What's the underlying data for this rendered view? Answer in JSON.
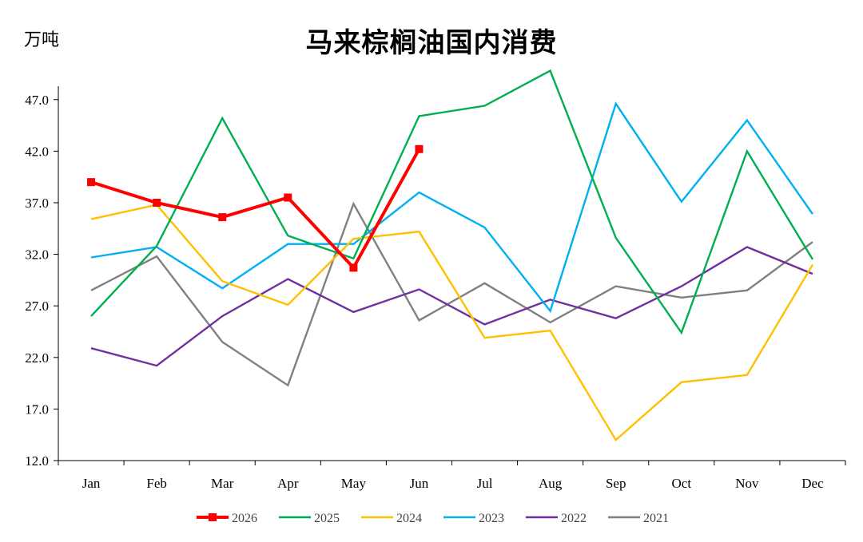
{
  "chart_data": {
    "type": "line",
    "title": "马来棕榈油国内消费",
    "unit": "万吨",
    "categories": [
      "Jan",
      "Feb",
      "Mar",
      "Apr",
      "May",
      "Jun",
      "Jul",
      "Aug",
      "Sep",
      "Oct",
      "Nov",
      "Dec"
    ],
    "ylim": [
      12.0,
      50.0
    ],
    "yticks": [
      "12.0",
      "17.0",
      "22.0",
      "27.0",
      "32.0",
      "37.0",
      "42.0",
      "47.0"
    ],
    "grid": false,
    "legend_position": "bottom",
    "series": [
      {
        "name": "2026",
        "color": "#ff0000",
        "markers": true,
        "bold": true,
        "values": [
          39.0,
          37.0,
          35.6,
          37.5,
          30.7,
          42.2,
          null,
          null,
          null,
          null,
          null,
          null
        ]
      },
      {
        "name": "2025",
        "color": "#00b050",
        "values": [
          26.0,
          32.8,
          45.2,
          33.8,
          31.6,
          45.4,
          46.4,
          49.8,
          33.6,
          24.4,
          42.0,
          31.5
        ]
      },
      {
        "name": "2024",
        "color": "#ffc000",
        "values": [
          35.4,
          36.8,
          29.4,
          27.1,
          33.5,
          34.2,
          23.9,
          24.6,
          14.0,
          19.6,
          20.3,
          31.0
        ]
      },
      {
        "name": "2023",
        "color": "#00b0f0",
        "values": [
          31.7,
          32.7,
          28.7,
          33.0,
          33.0,
          38.0,
          34.6,
          26.5,
          46.6,
          37.1,
          45.0,
          35.9
        ]
      },
      {
        "name": "2022",
        "color": "#7030a0",
        "values": [
          22.9,
          21.2,
          26.0,
          29.6,
          26.4,
          28.6,
          25.2,
          27.6,
          25.8,
          28.9,
          32.7,
          30.1
        ]
      },
      {
        "name": "2021",
        "color": "#808080",
        "values": [
          28.5,
          31.8,
          23.5,
          19.3,
          36.9,
          25.6,
          29.2,
          25.4,
          28.9,
          27.8,
          28.5,
          33.2
        ]
      }
    ]
  }
}
